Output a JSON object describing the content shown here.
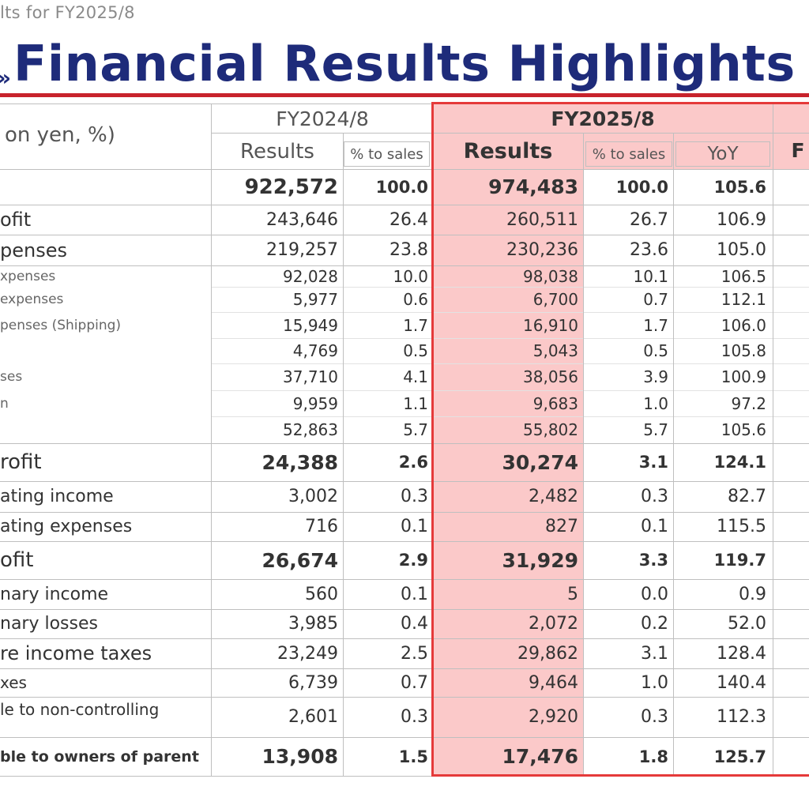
{
  "header": {
    "breadcrumb": "lts for FY2025/8",
    "title_icon": "»",
    "title": "Financial Results Highlights"
  },
  "table": {
    "unit_label": "on yen, %)",
    "groups": {
      "fy2024": "FY2024/8",
      "fy2025": "FY2025/8",
      "next_partial": "F"
    },
    "columns": {
      "results": "Results",
      "pct_sales": "% to sales",
      "results_hl": "Results",
      "pct_sales_hl": "% to sales",
      "yoy": "YoY"
    },
    "rows": [
      {
        "label": "",
        "r24": "922,572",
        "p24": "100.0",
        "r25": "974,483",
        "p25": "100.0",
        "yoy": "105.6"
      },
      {
        "label": "ofit",
        "r24": "243,646",
        "p24": "26.4",
        "r25": "260,511",
        "p25": "26.7",
        "yoy": "106.9"
      },
      {
        "label": "penses",
        "r24": "219,257",
        "p24": "23.8",
        "r25": "230,236",
        "p25": "23.6",
        "yoy": "105.0"
      },
      {
        "label": "xpenses",
        "r24": "92,028",
        "p24": "10.0",
        "r25": "98,038",
        "p25": "10.1",
        "yoy": "106.5"
      },
      {
        "label": " expenses",
        "r24": "5,977",
        "p24": "0.6",
        "r25": "6,700",
        "p25": "0.7",
        "yoy": "112.1"
      },
      {
        "label": "penses (Shipping)",
        "r24": "15,949",
        "p24": "1.7",
        "r25": "16,910",
        "p25": "1.7",
        "yoy": "106.0"
      },
      {
        "label": "",
        "r24": "4,769",
        "p24": "0.5",
        "r25": "5,043",
        "p25": "0.5",
        "yoy": "105.8"
      },
      {
        "label": "ses",
        "r24": "37,710",
        "p24": "4.1",
        "r25": "38,056",
        "p25": "3.9",
        "yoy": "100.9"
      },
      {
        "label": "n",
        "r24": "9,959",
        "p24": "1.1",
        "r25": "9,683",
        "p25": "1.0",
        "yoy": "97.2"
      },
      {
        "label": "",
        "r24": "52,863",
        "p24": "5.7",
        "r25": "55,802",
        "p25": "5.7",
        "yoy": "105.6"
      },
      {
        "label": "rofit",
        "r24": "24,388",
        "p24": "2.6",
        "r25": "30,274",
        "p25": "3.1",
        "yoy": "124.1"
      },
      {
        "label": "ating income",
        "r24": "3,002",
        "p24": "0.3",
        "r25": "2,482",
        "p25": "0.3",
        "yoy": "82.7"
      },
      {
        "label": "ating expenses",
        "r24": "716",
        "p24": "0.1",
        "r25": "827",
        "p25": "0.1",
        "yoy": "115.5"
      },
      {
        "label": "ofit",
        "r24": "26,674",
        "p24": "2.9",
        "r25": "31,929",
        "p25": "3.3",
        "yoy": "119.7"
      },
      {
        "label": "nary income",
        "r24": "560",
        "p24": "0.1",
        "r25": "5",
        "p25": "0.0",
        "yoy": "0.9"
      },
      {
        "label": "nary losses",
        "r24": "3,985",
        "p24": "0.4",
        "r25": "2,072",
        "p25": "0.2",
        "yoy": "52.0"
      },
      {
        "label": "re income taxes",
        "r24": "23,249",
        "p24": "2.5",
        "r25": "29,862",
        "p25": "3.1",
        "yoy": "128.4"
      },
      {
        "label": "xes",
        "r24": "6,739",
        "p24": "0.7",
        "r25": "9,464",
        "p25": "1.0",
        "yoy": "140.4"
      },
      {
        "label": "le to non-controlling",
        "r24": "2,601",
        "p24": "0.3",
        "r25": "2,920",
        "p25": "0.3",
        "yoy": "112.3"
      },
      {
        "label": "ble to owners of parent",
        "r24": "13,908",
        "p24": "1.5",
        "r25": "17,476",
        "p25": "1.8",
        "yoy": "125.7"
      }
    ]
  }
}
